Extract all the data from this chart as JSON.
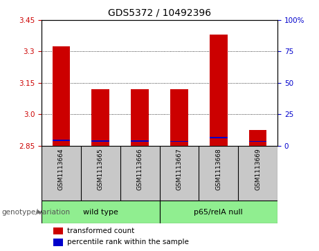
{
  "title": "GDS5372 / 10492396",
  "samples": [
    "GSM1113664",
    "GSM1113665",
    "GSM1113666",
    "GSM1113667",
    "GSM1113668",
    "GSM1113669"
  ],
  "red_values": [
    3.325,
    3.12,
    3.12,
    3.12,
    3.38,
    2.925
  ],
  "blue_values": [
    2.875,
    2.872,
    2.872,
    2.87,
    2.888,
    2.87
  ],
  "y_min": 2.85,
  "y_max": 3.45,
  "y_ticks_left": [
    2.85,
    3.0,
    3.15,
    3.3,
    3.45
  ],
  "y_ticks_right": [
    0,
    25,
    50,
    75,
    100
  ],
  "y_ticks_right_labels": [
    "0",
    "25",
    "50",
    "75",
    "100%"
  ],
  "groups": [
    {
      "label": "wild type",
      "span": [
        0,
        2
      ],
      "color": "#90EE90"
    },
    {
      "label": "p65/relA null",
      "span": [
        3,
        5
      ],
      "color": "#90EE90"
    }
  ],
  "group_label_prefix": "genotype/variation",
  "bar_color_red": "#CC0000",
  "bar_color_blue": "#0000CC",
  "bar_width": 0.45,
  "bg_color_sample": "#C8C8C8",
  "legend_red": "transformed count",
  "legend_blue": "percentile rank within the sample",
  "title_fontsize": 10
}
